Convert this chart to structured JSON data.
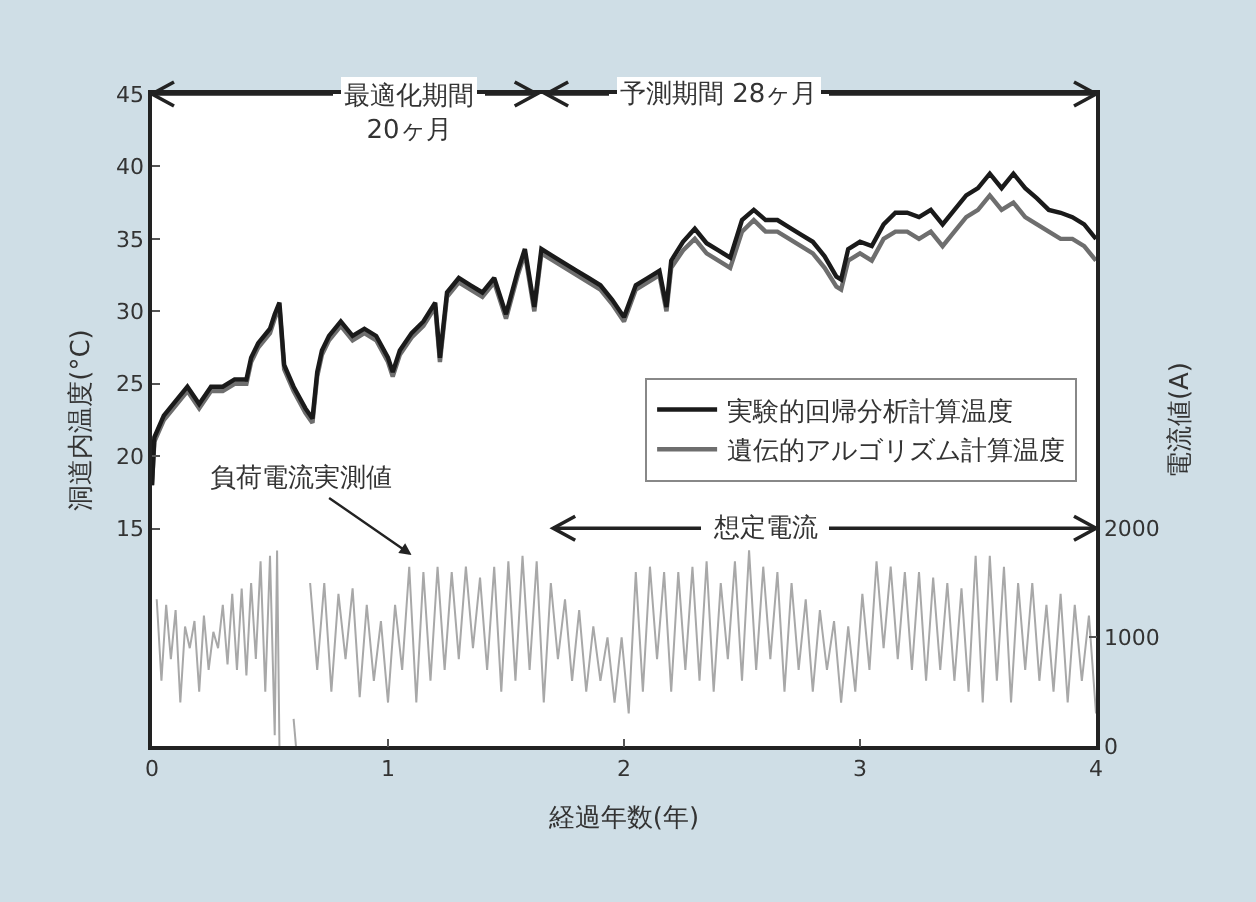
{
  "chart_data": {
    "type": "line",
    "xlabel": "経過年数(年)",
    "ylabel": "洞道内温度(°C)",
    "y2label": "電流値(A)",
    "x": [
      0,
      0.01,
      0.05,
      0.1,
      0.15,
      0.2,
      0.25,
      0.3,
      0.35,
      0.4,
      0.42,
      0.45,
      0.5,
      0.52,
      0.54,
      0.56,
      0.6,
      0.65,
      0.68,
      0.7,
      0.72,
      0.75,
      0.8,
      0.85,
      0.9,
      0.95,
      1.0,
      1.02,
      1.05,
      1.1,
      1.15,
      1.2,
      1.22,
      1.25,
      1.3,
      1.35,
      1.4,
      1.45,
      1.5,
      1.55,
      1.58,
      1.62,
      1.65,
      1.7,
      1.75,
      1.8,
      1.85,
      1.9,
      1.95,
      2.0,
      2.05,
      2.1,
      2.15,
      2.18,
      2.2,
      2.25,
      2.3,
      2.35,
      2.4,
      2.45,
      2.5,
      2.55,
      2.6,
      2.65,
      2.7,
      2.75,
      2.8,
      2.85,
      2.9,
      2.92,
      2.95,
      3.0,
      3.05,
      3.1,
      3.15,
      3.2,
      3.25,
      3.3,
      3.35,
      3.4,
      3.45,
      3.5,
      3.55,
      3.6,
      3.65,
      3.7,
      3.75,
      3.8,
      3.85,
      3.9,
      3.95,
      4.0
    ],
    "series": [
      {
        "name": "実験的回帰分析計算温度",
        "color": "#1a1a1a",
        "values": [
          18,
          21.3,
          22.8,
          23.8,
          24.8,
          23.6,
          24.8,
          24.8,
          25.3,
          25.3,
          26.8,
          27.8,
          28.8,
          29.8,
          30.6,
          26.3,
          24.8,
          23.3,
          22.6,
          25.8,
          27.3,
          28.3,
          29.3,
          28.3,
          28.8,
          28.3,
          26.8,
          25.8,
          27.3,
          28.5,
          29.3,
          30.6,
          26.8,
          31.3,
          32.3,
          31.8,
          31.3,
          32.3,
          29.8,
          32.8,
          34.3,
          30.3,
          34.3,
          33.8,
          33.3,
          32.8,
          32.3,
          31.8,
          30.8,
          29.6,
          31.8,
          32.3,
          32.8,
          30.3,
          33.5,
          34.8,
          35.7,
          34.7,
          34.2,
          33.7,
          36.3,
          37,
          36.3,
          36.3,
          35.8,
          35.3,
          34.8,
          33.8,
          32.4,
          32.2,
          34.3,
          34.8,
          34.5,
          36,
          36.8,
          36.8,
          36.5,
          37,
          36,
          37,
          38,
          38.5,
          39.5,
          38.5,
          39.5,
          38.5,
          37.8,
          37,
          36.8,
          36.5,
          36,
          35
        ]
      },
      {
        "name": "遺伝的アルゴリズム計算温度",
        "color": "#6e6e6e",
        "values": [
          18,
          21,
          22.5,
          23.5,
          24.5,
          23.3,
          24.5,
          24.5,
          25,
          25,
          26.5,
          27.5,
          28.5,
          29.5,
          30.3,
          26,
          24.5,
          23,
          22.3,
          25.5,
          27,
          28,
          29,
          28,
          28.5,
          28,
          26.5,
          25.5,
          27,
          28.2,
          29,
          30.3,
          26.5,
          31,
          32,
          31.5,
          31,
          32,
          29.5,
          32.5,
          34,
          30,
          34,
          33.5,
          33,
          32.5,
          32,
          31.5,
          30.5,
          29.3,
          31.5,
          32,
          32.5,
          30,
          33,
          34.2,
          35,
          34,
          33.5,
          33,
          35.5,
          36.3,
          35.5,
          35.5,
          35,
          34.5,
          34,
          33,
          31.7,
          31.5,
          33.5,
          34,
          33.5,
          35,
          35.5,
          35.5,
          35,
          35.5,
          34.5,
          35.5,
          36.5,
          37,
          38,
          37,
          37.5,
          36.5,
          36,
          35.5,
          35,
          35,
          34.5,
          33.5
        ]
      },
      {
        "color": "#a8a8a8",
        "axis": "y2",
        "x": [
          0.02,
          0.04,
          0.06,
          0.08,
          0.1,
          0.12,
          0.14,
          0.16,
          0.18,
          0.2,
          0.22,
          0.24,
          0.26,
          0.28,
          0.3,
          0.32,
          0.34,
          0.36,
          0.38,
          0.4,
          0.42,
          0.44,
          0.46,
          0.48,
          0.5,
          0.52,
          0.53,
          0.54,
          0.55,
          0.6,
          0.61,
          0.62,
          0.67,
          0.7,
          0.73,
          0.76,
          0.79,
          0.82,
          0.85,
          0.88,
          0.91,
          0.94,
          0.97,
          1.0,
          1.03,
          1.06,
          1.09,
          1.12,
          1.15,
          1.18,
          1.21,
          1.24,
          1.27,
          1.3,
          1.33,
          1.36,
          1.39,
          1.42,
          1.45,
          1.48,
          1.51,
          1.54,
          1.57,
          1.6,
          1.63,
          1.66,
          1.69,
          1.72,
          1.75,
          1.78,
          1.81,
          1.84,
          1.87,
          1.9,
          1.93,
          1.96,
          1.99,
          2.02,
          2.05,
          2.08,
          2.11,
          2.14,
          2.17,
          2.2,
          2.23,
          2.26,
          2.29,
          2.32,
          2.35,
          2.38,
          2.41,
          2.44,
          2.47,
          2.5,
          2.53,
          2.56,
          2.59,
          2.62,
          2.65,
          2.68,
          2.71,
          2.74,
          2.77,
          2.8,
          2.83,
          2.86,
          2.89,
          2.92,
          2.95,
          2.98,
          3.01,
          3.04,
          3.07,
          3.1,
          3.13,
          3.16,
          3.19,
          3.22,
          3.25,
          3.28,
          3.31,
          3.34,
          3.37,
          3.4,
          3.43,
          3.46,
          3.49,
          3.52,
          3.55,
          3.58,
          3.61,
          3.64,
          3.67,
          3.7,
          3.73,
          3.76,
          3.79,
          3.82,
          3.85,
          3.88,
          3.91,
          3.94,
          3.97,
          4.0
        ],
        "values": [
          1350,
          600,
          1300,
          800,
          1250,
          400,
          1100,
          900,
          1150,
          500,
          1200,
          700,
          1050,
          900,
          1300,
          750,
          1400,
          700,
          1450,
          650,
          1500,
          800,
          1700,
          500,
          1750,
          100,
          1800,
          0,
          null,
          250,
          0,
          null,
          1500,
          700,
          1500,
          500,
          1400,
          800,
          1450,
          450,
          1300,
          600,
          1150,
          400,
          1300,
          700,
          1650,
          400,
          1600,
          600,
          1650,
          700,
          1600,
          800,
          1650,
          900,
          1550,
          700,
          1650,
          500,
          1700,
          600,
          1750,
          700,
          1700,
          400,
          1500,
          800,
          1350,
          600,
          1250,
          500,
          1100,
          600,
          1000,
          400,
          1000,
          300,
          1600,
          500,
          1650,
          800,
          1600,
          500,
          1600,
          700,
          1650,
          600,
          1700,
          500,
          1500,
          800,
          1700,
          600,
          1800,
          700,
          1650,
          800,
          1600,
          500,
          1500,
          700,
          1350,
          500,
          1250,
          700,
          1150,
          400,
          1100,
          500,
          1400,
          700,
          1700,
          900,
          1650,
          800,
          1600,
          700,
          1600,
          600,
          1550,
          700,
          1500,
          600,
          1450,
          500,
          1750,
          400,
          1750,
          600,
          1650,
          400,
          1500,
          700,
          1500,
          600,
          1300,
          500,
          1400,
          400,
          1300,
          600,
          1200,
          300
        ]
      }
    ],
    "xlim": [
      0,
      4
    ],
    "xticks": [
      0,
      1,
      2,
      3,
      4
    ],
    "ylim": [
      0,
      45
    ],
    "yticks": [
      15,
      20,
      25,
      30,
      35,
      40,
      45
    ],
    "y2lim": [
      0,
      6000
    ],
    "y2ticks": [
      0,
      1000,
      2000
    ],
    "annotations": [
      "最適化期間\n20ヶ月",
      "予測期間 28ヶ月",
      "想定電流",
      "負荷電流実測値"
    ],
    "grid": false,
    "legend": "right",
    "marker": "none",
    "line_style": "solid"
  }
}
